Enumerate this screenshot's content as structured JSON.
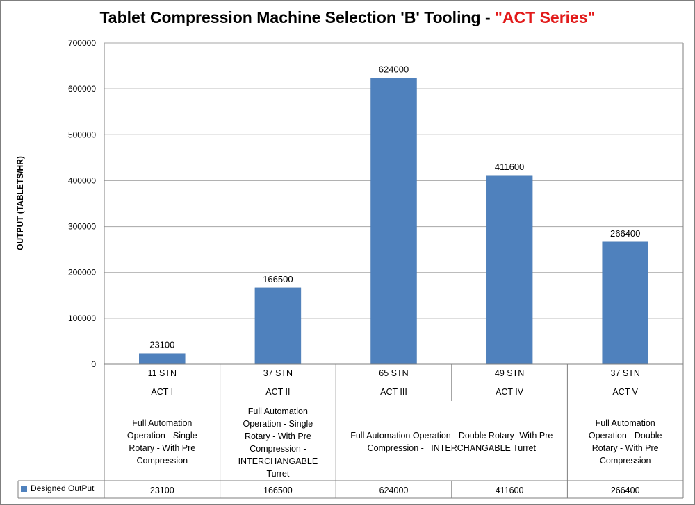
{
  "title": {
    "text": "Tablet Compression Machine Selection 'B' Tooling - ",
    "accent": "\"ACT Series\"",
    "accent_color": "#e21a1a"
  },
  "colors": {
    "bar": "#4f81bd",
    "grid": "#a6a6a6",
    "axis": "#7f7f7f"
  },
  "chart_data": {
    "type": "bar",
    "title": "Tablet Compression Machine Selection 'B' Tooling - \"ACT Series\"",
    "ylabel": "OUTPUT (TABLETS/HR)",
    "xlabel": "",
    "ylim": [
      0,
      700000
    ],
    "yticks": [
      0,
      100000,
      200000,
      300000,
      400000,
      500000,
      600000,
      700000
    ],
    "grid": true,
    "legend_placement": "data-table-left",
    "categories": [
      {
        "stations": "11 STN",
        "model": "ACT I"
      },
      {
        "stations": "37 STN",
        "model": "ACT II"
      },
      {
        "stations": "65 STN",
        "model": "ACT III"
      },
      {
        "stations": "49 STN",
        "model": "ACT IV"
      },
      {
        "stations": "37 STN",
        "model": "ACT V"
      }
    ],
    "descriptions": [
      "Full Automation Operation - Single Rotary - With Pre Compression",
      "Full Automation Operation - Single Rotary - With Pre Compression - INTERCHANGABLE Turret",
      "Full Automation Operation - Double Rotary -With Pre Compression -   INTERCHANGABLE Turret",
      "Full Automation Operation - Double Rotary - With Pre Compression"
    ],
    "series": [
      {
        "name": "Designed OutPut",
        "values": [
          23100,
          166500,
          624000,
          411600,
          266400
        ]
      }
    ],
    "data_labels": [
      "23100",
      "166500",
      "624000",
      "411600",
      "266400"
    ],
    "table_values": [
      "23100",
      "166500",
      "624000",
      "411600",
      "266400"
    ]
  }
}
